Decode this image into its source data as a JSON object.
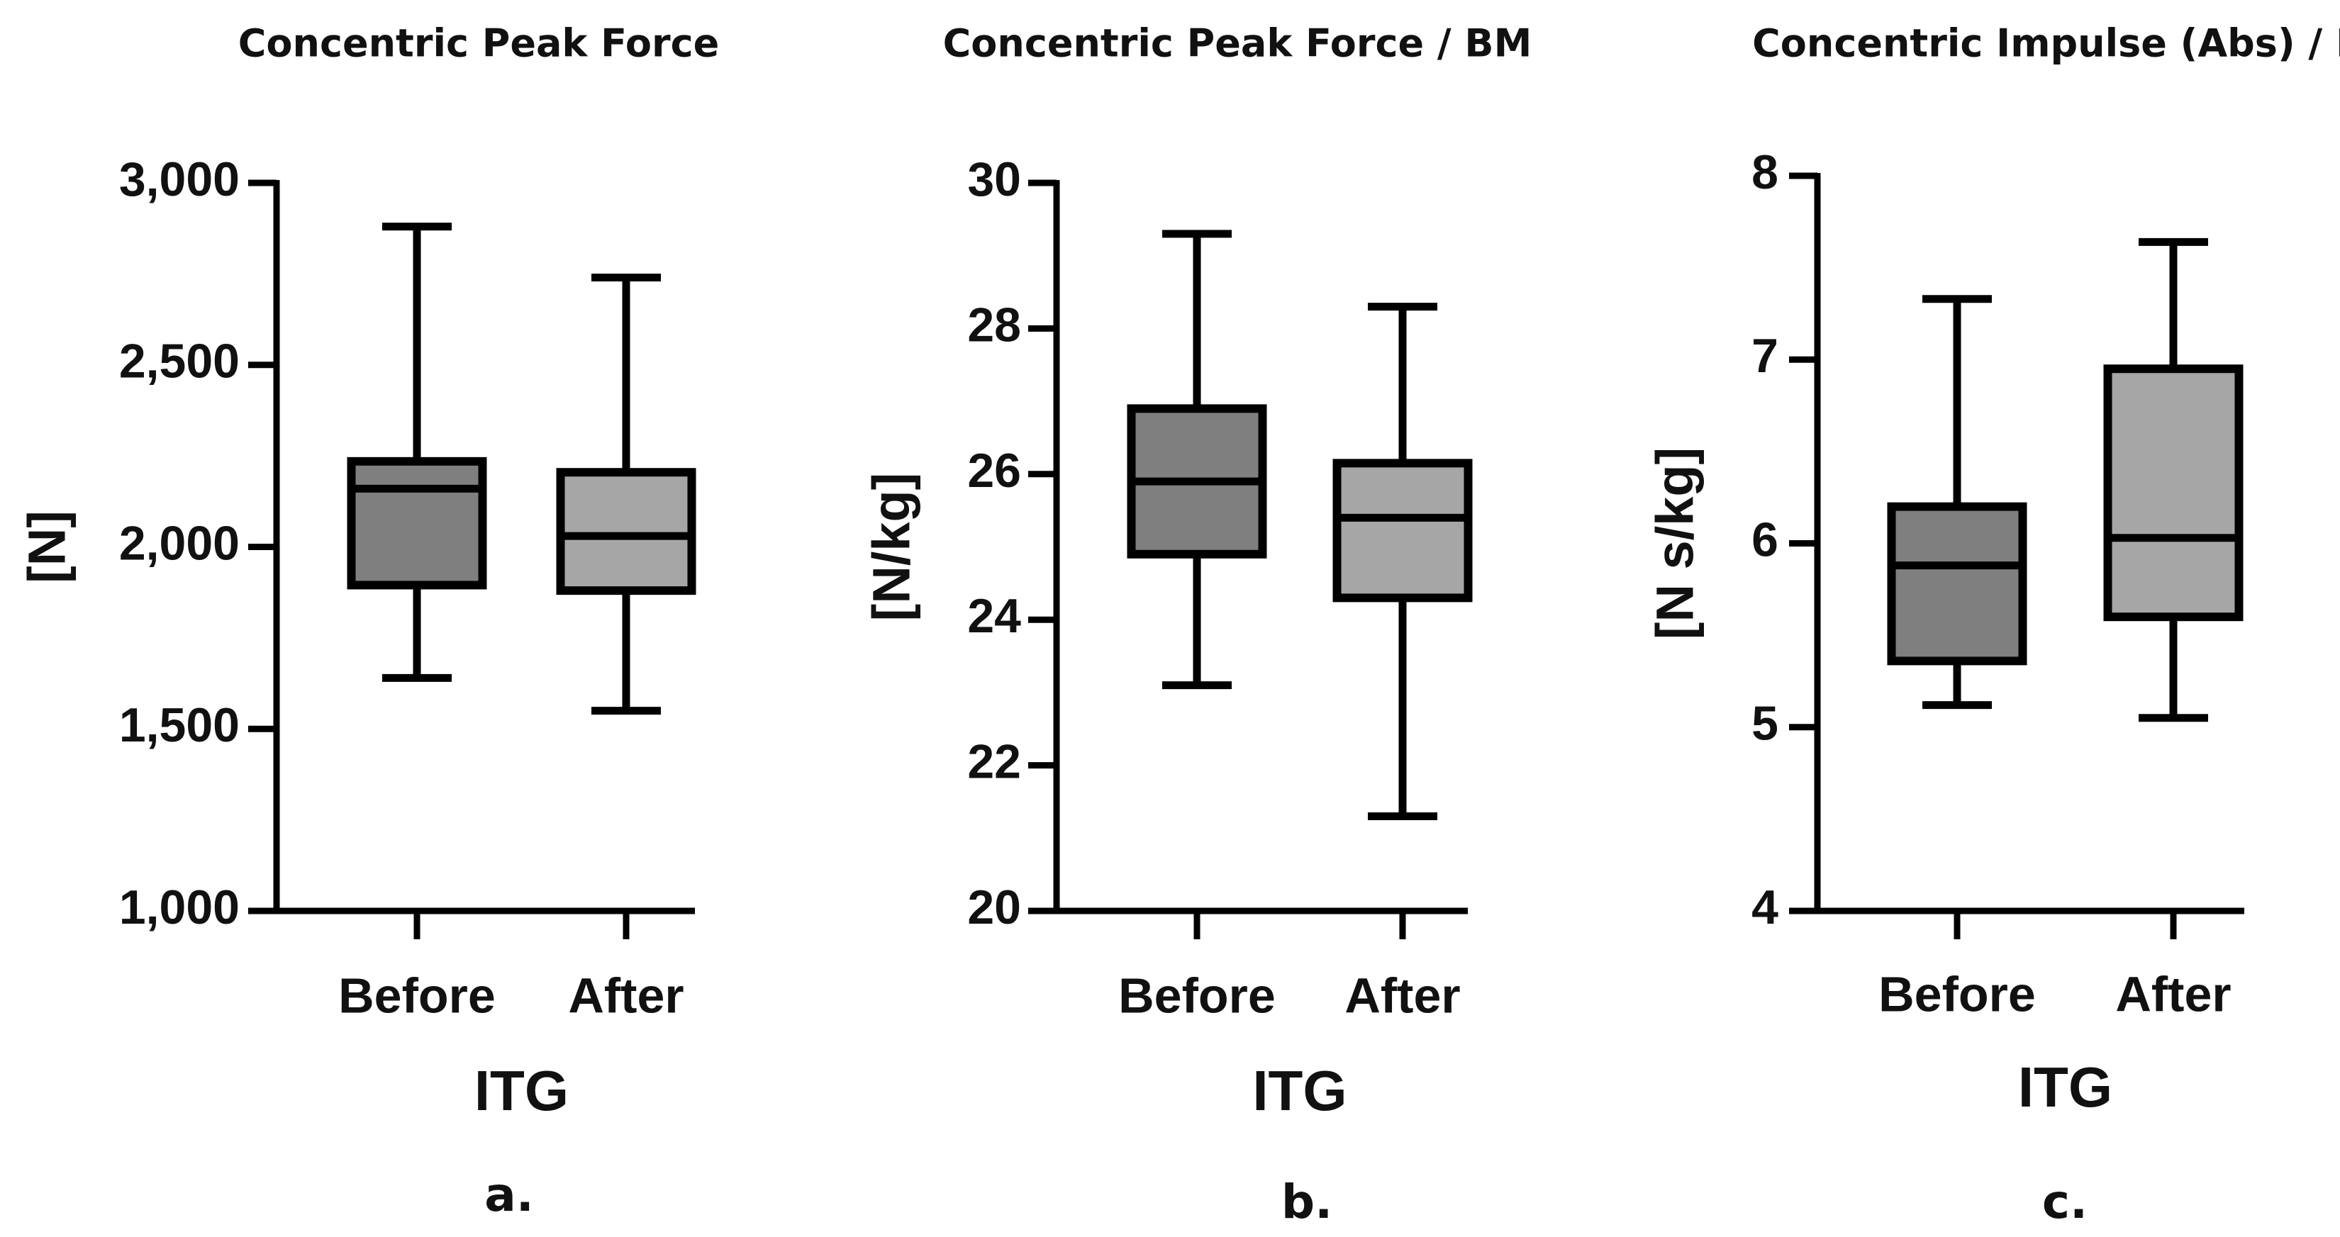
{
  "chart_data": [
    {
      "type": "box",
      "title": "Concentric Peak Force",
      "ylabel": "[N]",
      "xlabel": "ITG",
      "panel_label": "a.",
      "ylim": [
        1000,
        3000
      ],
      "yticks": [
        1000,
        1500,
        2000,
        2500,
        3000
      ],
      "ytick_labels": [
        "1,000",
        "1,500",
        "2,000",
        "2,500",
        "3,000"
      ],
      "categories": [
        "Before",
        "After"
      ],
      "boxes": [
        {
          "category": "Before",
          "min": 1640,
          "q1": 1895,
          "median": 2160,
          "q3": 2235,
          "max": 2880,
          "fill": "#7f7f7f"
        },
        {
          "category": "After",
          "min": 1550,
          "q1": 1880,
          "median": 2030,
          "q3": 2205,
          "max": 2740,
          "fill": "#a6a6a6"
        }
      ]
    },
    {
      "type": "box",
      "title": "Concentric Peak Force / BM",
      "ylabel": "[N/kg]",
      "xlabel": "ITG",
      "panel_label": "b.",
      "ylim": [
        20,
        30
      ],
      "yticks": [
        20,
        22,
        24,
        26,
        28,
        30
      ],
      "ytick_labels": [
        "20",
        "22",
        "24",
        "26",
        "28",
        "30"
      ],
      "categories": [
        "Before",
        "After"
      ],
      "boxes": [
        {
          "category": "Before",
          "min": 23.1,
          "q1": 24.9,
          "median": 25.9,
          "q3": 26.9,
          "max": 29.3,
          "fill": "#7f7f7f"
        },
        {
          "category": "After",
          "min": 21.3,
          "q1": 24.3,
          "median": 25.4,
          "q3": 26.15,
          "max": 28.3,
          "fill": "#a6a6a6"
        }
      ]
    },
    {
      "type": "box",
      "title": "Concentric Impulse (Abs) / BM",
      "ylabel": "[N s/kg]",
      "xlabel": "ITG",
      "panel_label": "c.",
      "ylim": [
        4,
        8
      ],
      "yticks": [
        4,
        5,
        6,
        7,
        8
      ],
      "ytick_labels": [
        "4",
        "5",
        "6",
        "7",
        "8"
      ],
      "categories": [
        "Before",
        "After"
      ],
      "boxes": [
        {
          "category": "Before",
          "min": 5.12,
          "q1": 5.36,
          "median": 5.88,
          "q3": 6.2,
          "max": 7.33,
          "fill": "#7f7f7f"
        },
        {
          "category": "After",
          "min": 5.05,
          "q1": 5.6,
          "median": 6.03,
          "q3": 6.95,
          "max": 7.64,
          "fill": "#a6a6a6"
        }
      ]
    }
  ]
}
